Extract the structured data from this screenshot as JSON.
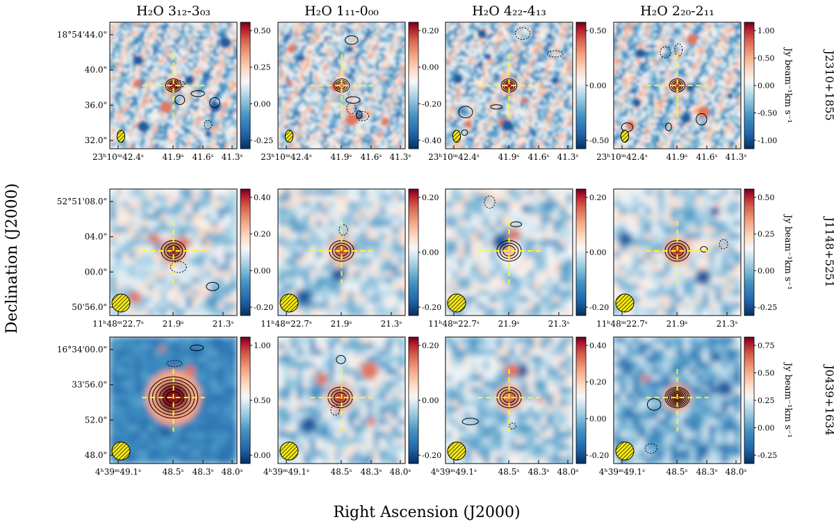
{
  "figure": {
    "xlabel": "Right Ascension (J2000)",
    "ylabel": "Declination (J2000)"
  },
  "chart_data": {
    "type": "heatmap",
    "columns": [
      {
        "title": "H₂O 3₁₂-3₀₃"
      },
      {
        "title": "H₂O 1₁₁-0₀₀"
      },
      {
        "title": "H₂O 4₂₂-4₁₃"
      },
      {
        "title": "H₂O 2₂₀-2₁₁"
      }
    ],
    "rows": [
      {
        "source": "J2310+1855",
        "unit": "Jy beam⁻¹km s⁻¹",
        "ra_ticks": [
          "23ʰ10ᵐ42.4ˢ",
          "41.9ˢ",
          "41.6ˢ",
          "41.3ˢ"
        ],
        "dec_ticks": [
          "18°54'44.0\"",
          "40.0\"",
          "36.0\"",
          "32.0\""
        ],
        "colorbars": [
          [
            "0.50",
            "0.25",
            "0.00",
            "-0.25"
          ],
          [
            "0.20",
            "0.00",
            "-0.20",
            "-0.40"
          ],
          [
            "0.50",
            "0.00",
            "-0.50"
          ],
          [
            "1.00",
            "0.50",
            "0.00",
            "-0.50",
            "-1.00"
          ]
        ]
      },
      {
        "source": "J1148+5251",
        "unit": "Jy beam⁻¹km s⁻¹",
        "ra_ticks": [
          "11ʰ48ᵐ22.7ˢ",
          "21.9ˢ",
          "21.3ˢ"
        ],
        "dec_ticks": [
          "52°51'08.0\"",
          "04.0\"",
          "00.0\"",
          "50'56.0\""
        ],
        "colorbars": [
          [
            "0.40",
            "0.20",
            "0.00",
            "-0.20"
          ],
          [
            "0.20",
            "0.00",
            "-0.20"
          ],
          [
            "0.20",
            "0.00",
            "-0.20"
          ],
          [
            "0.50",
            "0.25",
            "0.00",
            "-0.25"
          ]
        ]
      },
      {
        "source": "J0439+1634",
        "unit": "Jy beam⁻¹km s⁻¹",
        "ra_ticks": [
          "4ʰ39ᵐ49.1ˢ",
          "48.5ˢ",
          "48.3ˢ",
          "48.0ˢ"
        ],
        "dec_ticks": [
          "16°34'00.0\"",
          "33'56.0\"",
          "52.0\"",
          "48.0\""
        ],
        "colorbars": [
          [
            "1.00",
            "0.50",
            "0.00"
          ],
          [
            "0.20",
            "0.00",
            "-0.20"
          ],
          [
            "0.40",
            "0.20",
            "0.00",
            "-0.20"
          ],
          [
            "0.75",
            "0.50",
            "0.25",
            "0.00",
            "-0.25"
          ]
        ]
      }
    ],
    "colormap": "RdBu_r",
    "crosshair_color": "#ffff00",
    "beam_color": "#f5ea14",
    "grid": false
  }
}
